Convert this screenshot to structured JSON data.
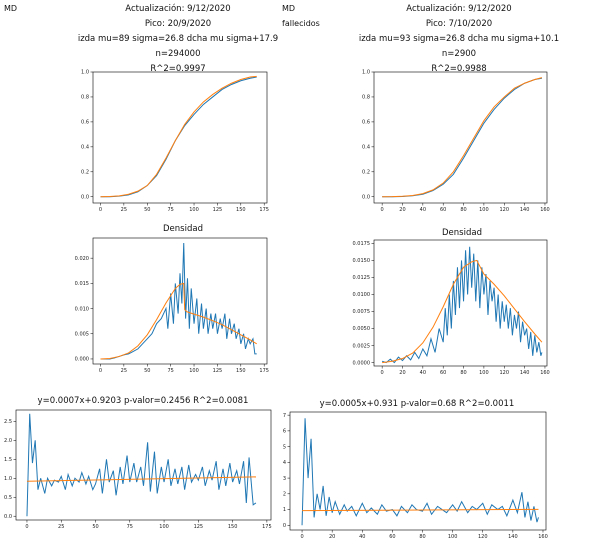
{
  "left": {
    "region": "MD",
    "subregion": "",
    "header": {
      "line1": "Actualización: 9/12/2020",
      "line2": "Pico: 20/9/2020",
      "line3": "izda mu=89 sigma=26.8 dcha mu sigma+17.9",
      "line4": "n=294000",
      "line5": "R^2=0.9997"
    },
    "density_title": "Densidad",
    "regression_title": "y=0.0007x+0.9203  p-valor=0.2456  R^2=0.0081"
  },
  "right": {
    "region": "MD",
    "subregion": "fallecidos",
    "header": {
      "line1": "Actualización: 9/12/2020",
      "line2": "Pico: 7/10/2020",
      "line3": "izda mu=93 sigma=26.8 dcha mu sigma+10.1",
      "line4": "n=2900",
      "line5": "R^2=0.9988"
    },
    "density_title": "Densidad",
    "regression_title": "y=0.0005x+0.931  p-valor=0.68  R^2=0.0011"
  },
  "colors": {
    "observed": "#1f77b4",
    "fitted": "#ff7f0e"
  },
  "chart_data": [
    {
      "id": "cdf-left",
      "type": "line",
      "title": "",
      "xlim": [
        -8,
        178
      ],
      "ylim": [
        -0.05,
        1.0
      ],
      "xticks": [
        0,
        25,
        50,
        75,
        100,
        125,
        150,
        175
      ],
      "yticks": [
        0.0,
        0.2,
        0.4,
        0.6,
        0.8,
        1.0
      ],
      "ytick_labels": [
        "0.0",
        "0.2",
        "0.4",
        "0.6",
        "0.8",
        "1.0"
      ],
      "series": [
        {
          "role": "observed",
          "x": [
            0,
            10,
            20,
            30,
            40,
            50,
            60,
            70,
            80,
            90,
            100,
            110,
            120,
            130,
            140,
            150,
            160,
            167
          ],
          "y": [
            0.0,
            0.0,
            0.005,
            0.015,
            0.04,
            0.09,
            0.17,
            0.3,
            0.45,
            0.57,
            0.66,
            0.74,
            0.8,
            0.86,
            0.9,
            0.93,
            0.95,
            0.96
          ]
        },
        {
          "role": "fitted",
          "x": [
            0,
            10,
            20,
            30,
            40,
            50,
            60,
            70,
            80,
            90,
            100,
            110,
            120,
            130,
            140,
            150,
            160,
            167
          ],
          "y": [
            0.0,
            0.002,
            0.007,
            0.02,
            0.045,
            0.09,
            0.18,
            0.31,
            0.45,
            0.58,
            0.68,
            0.76,
            0.82,
            0.87,
            0.91,
            0.94,
            0.96,
            0.965
          ]
        }
      ]
    },
    {
      "id": "density-left",
      "type": "line",
      "title": "Densidad",
      "xlim": [
        -8,
        178
      ],
      "ylim": [
        -0.001,
        0.024
      ],
      "xticks": [
        0,
        25,
        50,
        75,
        100,
        125,
        150,
        175
      ],
      "yticks": [
        0.0,
        0.005,
        0.01,
        0.015,
        0.02
      ],
      "ytick_labels": [
        "0.000",
        "0.005",
        "0.010",
        "0.015",
        "0.020"
      ],
      "series": [
        {
          "role": "observed",
          "x": [
            0,
            5,
            10,
            15,
            20,
            25,
            30,
            35,
            40,
            45,
            50,
            55,
            60,
            65,
            70,
            72,
            75,
            78,
            80,
            83,
            85,
            87,
            89,
            91,
            93,
            95,
            97,
            100,
            103,
            105,
            108,
            110,
            113,
            115,
            118,
            120,
            123,
            125,
            128,
            130,
            133,
            135,
            138,
            140,
            143,
            145,
            148,
            150,
            153,
            155,
            158,
            160,
            163,
            165,
            167
          ],
          "y": [
            0.0,
            0.0,
            0.0,
            0.0002,
            0.0005,
            0.0008,
            0.001,
            0.0015,
            0.002,
            0.003,
            0.004,
            0.005,
            0.007,
            0.008,
            0.01,
            0.006,
            0.013,
            0.007,
            0.015,
            0.009,
            0.017,
            0.011,
            0.023,
            0.008,
            0.016,
            0.006,
            0.014,
            0.007,
            0.012,
            0.005,
            0.011,
            0.006,
            0.01,
            0.005,
            0.009,
            0.006,
            0.009,
            0.005,
            0.008,
            0.006,
            0.009,
            0.004,
            0.008,
            0.005,
            0.007,
            0.004,
            0.006,
            0.003,
            0.005,
            0.002,
            0.004,
            0.003,
            0.004,
            0.001,
            0.001
          ]
        },
        {
          "role": "fitted",
          "x": [
            0,
            10,
            20,
            30,
            40,
            50,
            60,
            70,
            80,
            85,
            89,
            90,
            92,
            95,
            100,
            110,
            120,
            130,
            140,
            150,
            160,
            167
          ],
          "y": [
            0.0,
            0.0001,
            0.0005,
            0.0012,
            0.0026,
            0.0048,
            0.0078,
            0.0111,
            0.014,
            0.0148,
            0.015,
            0.0098,
            0.0094,
            0.0092,
            0.0089,
            0.0083,
            0.0076,
            0.0068,
            0.0058,
            0.0048,
            0.0038,
            0.003
          ]
        }
      ]
    },
    {
      "id": "regression-left",
      "type": "line",
      "title": "y=0.0007x+0.9203  p-valor=0.2456  R^2=0.0081",
      "xlim": [
        -8,
        178
      ],
      "ylim": [
        -0.1,
        2.8
      ],
      "xticks": [
        0,
        25,
        50,
        75,
        100,
        125,
        150,
        175
      ],
      "yticks": [
        0.0,
        0.5,
        1.0,
        1.5,
        2.0,
        2.5
      ],
      "ytick_labels": [
        "0.0",
        "0.5",
        "1.0",
        "1.5",
        "2.0",
        "2.5"
      ],
      "series": [
        {
          "role": "observed",
          "x": [
            0,
            2,
            4,
            6,
            8,
            10,
            13,
            15,
            18,
            20,
            23,
            25,
            28,
            30,
            33,
            35,
            38,
            40,
            43,
            45,
            48,
            50,
            53,
            55,
            58,
            60,
            63,
            65,
            68,
            70,
            73,
            75,
            78,
            80,
            83,
            85,
            88,
            90,
            93,
            95,
            98,
            100,
            103,
            105,
            108,
            110,
            113,
            115,
            118,
            120,
            123,
            125,
            128,
            130,
            133,
            135,
            138,
            140,
            143,
            145,
            148,
            150,
            153,
            155,
            158,
            160,
            162,
            165,
            167
          ],
          "y": [
            0.0,
            2.7,
            1.4,
            2.0,
            0.7,
            1.0,
            0.6,
            1.0,
            0.8,
            0.95,
            0.9,
            1.05,
            0.7,
            1.1,
            0.8,
            1.0,
            0.9,
            1.15,
            0.85,
            1.05,
            0.7,
            0.85,
            1.25,
            0.6,
            1.5,
            0.9,
            1.2,
            0.55,
            1.3,
            0.85,
            1.6,
            0.9,
            1.4,
            0.9,
            1.3,
            0.8,
            1.95,
            0.65,
            1.7,
            0.6,
            1.3,
            0.9,
            1.5,
            0.8,
            1.25,
            0.85,
            1.3,
            0.7,
            1.35,
            0.9,
            1.1,
            0.95,
            1.3,
            0.8,
            1.2,
            0.95,
            1.45,
            0.7,
            1.25,
            0.8,
            1.4,
            0.9,
            1.2,
            0.85,
            1.45,
            0.35,
            1.55,
            0.3,
            0.35
          ]
        },
        {
          "role": "fitted",
          "x": [
            0,
            167
          ],
          "y": [
            0.9203,
            1.0372
          ]
        }
      ]
    },
    {
      "id": "cdf-right",
      "type": "line",
      "title": "",
      "xlim": [
        -8,
        162
      ],
      "ylim": [
        -0.05,
        1.0
      ],
      "xticks": [
        0,
        20,
        40,
        60,
        80,
        100,
        120,
        140,
        160
      ],
      "yticks": [
        0.0,
        0.2,
        0.4,
        0.6,
        0.8,
        1.0
      ],
      "ytick_labels": [
        "0.0",
        "0.2",
        "0.4",
        "0.6",
        "0.8",
        "1.0"
      ],
      "series": [
        {
          "role": "observed",
          "x": [
            0,
            10,
            20,
            30,
            40,
            50,
            60,
            70,
            80,
            90,
            100,
            110,
            120,
            130,
            140,
            150,
            157
          ],
          "y": [
            0.0,
            0.0,
            0.002,
            0.008,
            0.02,
            0.05,
            0.1,
            0.18,
            0.31,
            0.45,
            0.59,
            0.7,
            0.79,
            0.86,
            0.91,
            0.94,
            0.95
          ]
        },
        {
          "role": "fitted",
          "x": [
            0,
            10,
            20,
            30,
            40,
            50,
            60,
            70,
            80,
            90,
            100,
            110,
            120,
            130,
            140,
            150,
            157
          ],
          "y": [
            0.0,
            0.001,
            0.004,
            0.01,
            0.025,
            0.055,
            0.11,
            0.2,
            0.33,
            0.47,
            0.61,
            0.72,
            0.8,
            0.87,
            0.91,
            0.94,
            0.955
          ]
        }
      ]
    },
    {
      "id": "density-right",
      "type": "line",
      "title": "Densidad",
      "xlim": [
        -8,
        162
      ],
      "ylim": [
        -0.0005,
        0.018
      ],
      "xticks": [
        0,
        20,
        40,
        60,
        80,
        100,
        120,
        140,
        160
      ],
      "yticks": [
        0.0,
        0.0025,
        0.005,
        0.0075,
        0.01,
        0.0125,
        0.015,
        0.0175
      ],
      "ytick_labels": [
        "0.0000",
        "0.0025",
        "0.0050",
        "0.0075",
        "0.0100",
        "0.0125",
        "0.0150",
        "0.0175"
      ],
      "series": [
        {
          "role": "observed",
          "x": [
            0,
            4,
            8,
            12,
            16,
            20,
            24,
            28,
            32,
            36,
            40,
            44,
            48,
            52,
            56,
            60,
            62,
            64,
            66,
            68,
            70,
            72,
            74,
            76,
            78,
            80,
            82,
            84,
            86,
            88,
            90,
            92,
            94,
            96,
            98,
            100,
            102,
            104,
            106,
            108,
            110,
            112,
            114,
            116,
            118,
            120,
            122,
            124,
            126,
            128,
            130,
            132,
            134,
            136,
            138,
            140,
            142,
            144,
            146,
            148,
            150,
            152,
            154,
            156,
            157
          ],
          "y": [
            0.0002,
            0.0,
            0.0005,
            0.0,
            0.0008,
            0.0003,
            0.001,
            0.0004,
            0.0015,
            0.0006,
            0.002,
            0.001,
            0.0035,
            0.0015,
            0.005,
            0.003,
            0.008,
            0.004,
            0.01,
            0.005,
            0.012,
            0.007,
            0.014,
            0.008,
            0.015,
            0.009,
            0.0165,
            0.01,
            0.017,
            0.011,
            0.016,
            0.009,
            0.015,
            0.008,
            0.014,
            0.01,
            0.013,
            0.007,
            0.012,
            0.009,
            0.011,
            0.006,
            0.01,
            0.005,
            0.009,
            0.006,
            0.0085,
            0.005,
            0.008,
            0.004,
            0.007,
            0.005,
            0.0075,
            0.003,
            0.006,
            0.004,
            0.005,
            0.002,
            0.0045,
            0.001,
            0.004,
            0.0015,
            0.003,
            0.001,
            0.0015
          ]
        },
        {
          "role": "fitted",
          "x": [
            0,
            10,
            20,
            30,
            40,
            50,
            60,
            70,
            80,
            88,
            93,
            100,
            110,
            120,
            130,
            140,
            150,
            157
          ],
          "y": [
            0.0,
            0.0002,
            0.0006,
            0.0014,
            0.0029,
            0.0052,
            0.0082,
            0.0115,
            0.014,
            0.0148,
            0.015,
            0.013,
            0.0115,
            0.0098,
            0.0079,
            0.006,
            0.0042,
            0.003
          ]
        }
      ]
    },
    {
      "id": "regression-right",
      "type": "line",
      "title": "y=0.0005x+0.931  p-valor=0.68  R^2=0.0011",
      "xlim": [
        -8,
        162
      ],
      "ylim": [
        -0.3,
        7.2
      ],
      "xticks": [
        0,
        20,
        40,
        60,
        80,
        100,
        120,
        140,
        160
      ],
      "yticks": [
        0,
        1,
        2,
        3,
        4,
        5,
        6,
        7
      ],
      "ytick_labels": [
        "0",
        "1",
        "2",
        "3",
        "4",
        "5",
        "6",
        "7"
      ],
      "series": [
        {
          "role": "observed",
          "x": [
            0,
            2,
            4,
            6,
            8,
            10,
            12,
            14,
            16,
            18,
            20,
            22,
            25,
            28,
            30,
            33,
            36,
            40,
            43,
            46,
            50,
            53,
            56,
            60,
            63,
            66,
            70,
            73,
            76,
            80,
            83,
            86,
            90,
            93,
            96,
            100,
            103,
            106,
            110,
            113,
            116,
            120,
            123,
            126,
            130,
            133,
            136,
            140,
            143,
            146,
            148,
            150,
            152,
            154,
            156,
            157
          ],
          "y": [
            0.0,
            6.8,
            3.0,
            5.5,
            0.5,
            2.0,
            1.0,
            2.5,
            0.6,
            1.8,
            0.8,
            1.5,
            0.7,
            1.3,
            0.9,
            1.2,
            0.6,
            1.4,
            0.8,
            1.1,
            0.7,
            1.3,
            0.9,
            1.0,
            0.6,
            1.2,
            0.8,
            1.3,
            1.0,
            0.9,
            1.4,
            0.7,
            1.2,
            1.0,
            0.8,
            1.3,
            0.9,
            1.5,
            0.8,
            1.2,
            1.0,
            1.4,
            0.7,
            1.3,
            1.0,
            1.2,
            0.6,
            1.6,
            0.8,
            2.1,
            0.5,
            1.5,
            0.3,
            1.2,
            0.2,
            0.5
          ]
        },
        {
          "role": "fitted",
          "x": [
            0,
            157
          ],
          "y": [
            0.931,
            1.0095
          ]
        }
      ]
    }
  ]
}
